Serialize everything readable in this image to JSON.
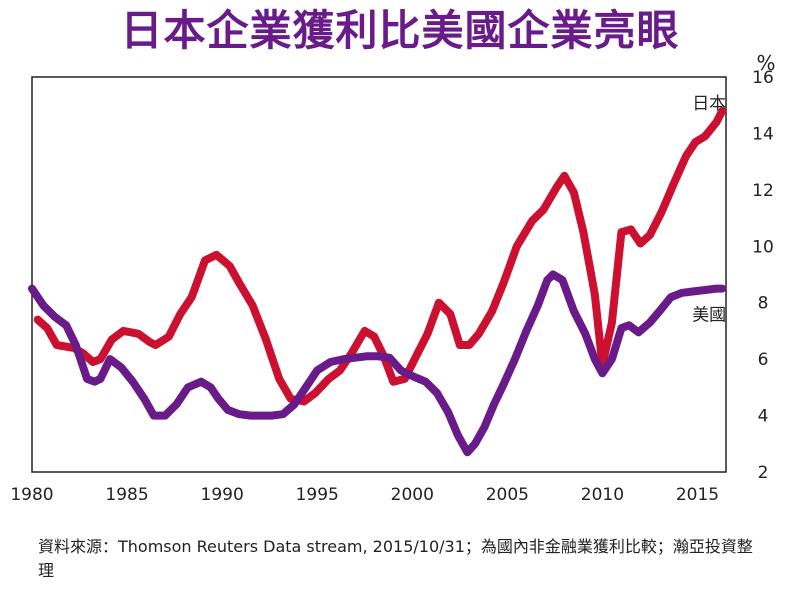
{
  "title": "日本企業獲利比美國企業亮眼",
  "source": "資料來源：Thomson Reuters Data stream, 2015/10/31；為國內非金融業獲利比較；瀚亞投資整理",
  "chart_data": {
    "type": "line",
    "title": "日本企業獲利比美國企業亮眼",
    "y_unit": "%",
    "xlim": [
      1980,
      2016.5
    ],
    "ylim": [
      2,
      16
    ],
    "x_ticks": [
      "1980",
      "1985",
      "1990",
      "1995",
      "2000",
      "2005",
      "2010",
      "2015"
    ],
    "y_ticks": [
      "2",
      "4",
      "6",
      "8",
      "10",
      "12",
      "14",
      "16"
    ],
    "grid": false,
    "legend": "inline labels at line ends",
    "series": [
      {
        "name": "日本",
        "color": "#cc1030",
        "x": [
          1980.3,
          1980.8,
          1981.3,
          1982.2,
          1982.7,
          1983.2,
          1983.6,
          1984.2,
          1984.8,
          1985.6,
          1986.2,
          1986.5,
          1987.2,
          1987.8,
          1988.4,
          1989.1,
          1989.7,
          1990.4,
          1990.9,
          1991.6,
          1992.3,
          1993.0,
          1993.6,
          1994.3,
          1994.9,
          1995.6,
          1996.2,
          1996.8,
          1997.5,
          1998.0,
          1998.5,
          1999.0,
          1999.6,
          2000.2,
          2000.8,
          2001.4,
          2002.0,
          2002.5,
          2003.0,
          2003.5,
          2004.2,
          2004.8,
          2005.5,
          2006.3,
          2006.9,
          2007.6,
          2008.0,
          2008.5,
          2009.0,
          2009.6,
          2010.0,
          2010.5,
          2011.0,
          2011.5,
          2012.0,
          2012.5,
          2013.1,
          2013.8,
          2014.4,
          2014.9,
          2015.4,
          2016.0,
          2016.3
        ],
        "values": [
          7.4,
          7.1,
          6.5,
          6.4,
          6.2,
          5.9,
          6.0,
          6.7,
          7.0,
          6.9,
          6.6,
          6.5,
          6.8,
          7.6,
          8.2,
          9.5,
          9.7,
          9.3,
          8.7,
          7.9,
          6.7,
          5.3,
          4.6,
          4.5,
          4.8,
          5.3,
          5.6,
          6.2,
          7.0,
          6.8,
          6.1,
          5.2,
          5.3,
          6.1,
          6.9,
          8.0,
          7.6,
          6.5,
          6.5,
          6.9,
          7.7,
          8.7,
          10.0,
          10.9,
          11.3,
          12.1,
          12.5,
          11.9,
          10.5,
          8.3,
          5.8,
          7.3,
          10.5,
          10.6,
          10.1,
          10.4,
          11.2,
          12.3,
          13.2,
          13.7,
          13.9,
          14.4,
          14.8
        ]
      },
      {
        "name": "美國",
        "color": "#6a1b8a",
        "x": [
          1980.0,
          1980.6,
          1981.2,
          1981.8,
          1982.3,
          1982.9,
          1983.3,
          1983.6,
          1984.1,
          1984.7,
          1985.3,
          1985.9,
          1986.4,
          1987.0,
          1987.6,
          1988.2,
          1988.9,
          1989.4,
          1989.8,
          1990.3,
          1990.9,
          1991.5,
          1992.0,
          1992.6,
          1993.2,
          1993.8,
          1994.4,
          1995.0,
          1995.7,
          1996.4,
          1997.0,
          1997.6,
          1998.2,
          1998.8,
          1999.4,
          2000.0,
          2000.7,
          2001.3,
          2001.9,
          2002.4,
          2002.9,
          2003.3,
          2003.8,
          2004.3,
          2004.8,
          2005.4,
          2006.0,
          2006.6,
          2007.1,
          2007.4,
          2007.9,
          2008.5,
          2009.1,
          2009.6,
          2010.0,
          2010.5,
          2011.0,
          2011.4,
          2011.9,
          2012.5,
          2013.0,
          2013.6,
          2014.2,
          2014.8,
          2015.4,
          2016.0,
          2016.3
        ],
        "values": [
          8.5,
          7.9,
          7.5,
          7.2,
          6.5,
          5.3,
          5.2,
          5.3,
          6.0,
          5.7,
          5.2,
          4.6,
          4.0,
          4.0,
          4.4,
          5.0,
          5.2,
          5.0,
          4.6,
          4.2,
          4.05,
          4.0,
          4.0,
          4.0,
          4.05,
          4.4,
          5.0,
          5.6,
          5.9,
          6.0,
          6.05,
          6.1,
          6.1,
          6.05,
          5.6,
          5.4,
          5.2,
          4.8,
          4.1,
          3.3,
          2.7,
          3.0,
          3.6,
          4.4,
          5.1,
          6.0,
          7.0,
          7.9,
          8.8,
          9.0,
          8.8,
          7.7,
          6.9,
          6.0,
          5.5,
          6.0,
          7.1,
          7.2,
          6.95,
          7.3,
          7.7,
          8.2,
          8.35,
          8.4,
          8.45,
          8.5,
          8.5
        ]
      }
    ]
  }
}
